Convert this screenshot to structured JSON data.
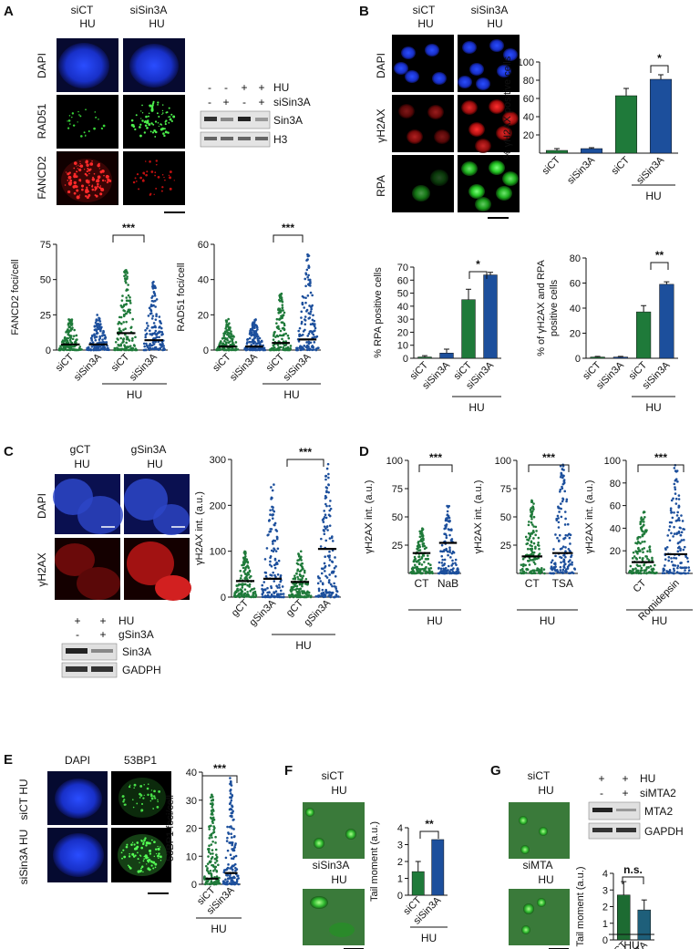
{
  "panels": {
    "A": {
      "letter": "A",
      "col1": "siCT",
      "col1b": "HU",
      "col2": "siSin3A",
      "col2b": "HU",
      "rows": [
        "DAPI",
        "RAD51",
        "FANCD2"
      ],
      "blot_rows": [
        "HU",
        "siSin3A"
      ],
      "blot_hu": [
        "-",
        "-",
        "+",
        "+"
      ],
      "blot_si": [
        "-",
        "+",
        "-",
        "+"
      ],
      "blot_bands": [
        "Sin3A",
        "H3"
      ]
    },
    "B": {
      "letter": "B",
      "col1": "siCT",
      "col1b": "HU",
      "col2": "siSin3A",
      "col2b": "HU",
      "rows": [
        "DAPI",
        "γH2AX",
        "RPA"
      ]
    },
    "C": {
      "letter": "C",
      "col1": "gCT",
      "col1b": "HU",
      "col2": "gSin3A",
      "col2b": "HU",
      "rows": [
        "DAPI",
        "γH2AX"
      ],
      "blot_rows": [
        "HU",
        "gSin3A"
      ],
      "blot_hu": [
        "+",
        "+"
      ],
      "blot_g": [
        "-",
        "+"
      ],
      "blot_bands": [
        "Sin3A",
        "GADPH"
      ]
    },
    "D": {
      "letter": "D"
    },
    "E": {
      "letter": "E",
      "cols": [
        "DAPI",
        "53BP1"
      ],
      "rows": [
        "siCT HU",
        "siSin3A HU"
      ]
    },
    "F": {
      "letter": "F",
      "img1a": "siCT",
      "img1b": "HU",
      "img2a": "siSin3A",
      "img2b": "HU"
    },
    "G": {
      "letter": "G",
      "img1a": "siCT",
      "img1b": "HU",
      "img2a": "siMTA",
      "img2b": "HU",
      "blot_rows": [
        "HU",
        "siMTA2"
      ],
      "blot_hu": [
        "+",
        "+"
      ],
      "blot_si": [
        "-",
        "+"
      ],
      "blot_bands": [
        "MTA2",
        "GAPDH"
      ]
    }
  },
  "colors": {
    "green": "#1f7a3a",
    "blue": "#1c4f9c",
    "teal": "#1e5f7a",
    "dark_green": "#1d6b32"
  },
  "chart_data": [
    {
      "id": "A1",
      "type": "scatter",
      "ylabel": "FANCD2 foci/cell",
      "ylim": [
        0,
        75
      ],
      "yticks": [
        0,
        25,
        50,
        75
      ],
      "categories": [
        "siCT",
        "siSin3A",
        "siCT",
        "siSin3A"
      ],
      "group_label": "HU",
      "significance": "***",
      "medians": [
        4,
        4,
        12,
        7
      ],
      "spread_max": [
        22,
        25,
        57,
        50
      ]
    },
    {
      "id": "A2",
      "type": "scatter",
      "ylabel": "RAD51 foci/cell",
      "ylim": [
        0,
        60
      ],
      "yticks": [
        0,
        20,
        40,
        60
      ],
      "categories": [
        "siCT",
        "siSin3A",
        "siCT",
        "siSin3A"
      ],
      "group_label": "HU",
      "significance": "***",
      "medians": [
        2,
        2,
        4,
        6
      ],
      "spread_max": [
        18,
        18,
        32,
        55
      ]
    },
    {
      "id": "B1",
      "type": "bar",
      "ylabel": "% γH2AX positive cells",
      "ylim": [
        0,
        100
      ],
      "yticks": [
        20,
        40,
        60,
        80,
        100
      ],
      "categories": [
        "siCT",
        "siSin3A",
        "siCT",
        "siSin3A"
      ],
      "group_label": "HU",
      "significance": "*",
      "values": [
        3,
        5,
        63,
        81
      ],
      "errors": [
        2,
        1,
        8,
        5
      ]
    },
    {
      "id": "B2",
      "type": "bar",
      "ylabel": "% RPA positive cells",
      "ylim": [
        0,
        70
      ],
      "yticks": [
        0,
        10,
        20,
        30,
        40,
        50,
        60,
        70
      ],
      "categories": [
        "siCT",
        "siSin3A",
        "siCT",
        "siSin3A"
      ],
      "group_label": "HU",
      "significance": "*",
      "values": [
        1,
        4,
        45,
        64
      ],
      "errors": [
        1,
        3,
        8,
        2
      ]
    },
    {
      "id": "B3",
      "type": "bar",
      "ylabel": "% of γH2AX and RPA positive cells",
      "ylim": [
        0,
        80
      ],
      "yticks": [
        0,
        20,
        40,
        60,
        80
      ],
      "categories": [
        "siCT",
        "siSin3A",
        "siCT",
        "siSin3A"
      ],
      "group_label": "HU",
      "significance": "**",
      "values": [
        1,
        1,
        37,
        59
      ],
      "errors": [
        0.5,
        0.5,
        5,
        2
      ]
    },
    {
      "id": "C1",
      "type": "scatter",
      "ylabel": "γH2AX int. (a.u.)",
      "ylim": [
        0,
        300
      ],
      "yticks": [
        0,
        100,
        200,
        300
      ],
      "categories": [
        "gCT",
        "gSin3A",
        "gCT",
        "gSin3A"
      ],
      "group_label": "HU",
      "significance": "***",
      "medians": [
        35,
        40,
        33,
        105
      ],
      "spread_max": [
        100,
        250,
        100,
        290
      ]
    },
    {
      "id": "D1",
      "type": "scatter",
      "ylabel": "γH2AX int. (a.u.)",
      "ylim": [
        0,
        100
      ],
      "yticks": [
        25,
        50,
        75,
        100
      ],
      "categories": [
        "CT",
        "NaB"
      ],
      "group_label": "HU",
      "significance": "***",
      "medians": [
        18,
        27
      ],
      "spread_max": [
        40,
        60
      ]
    },
    {
      "id": "D2",
      "type": "scatter",
      "ylabel": "γH2AX int. (a.u.)",
      "ylim": [
        0,
        100
      ],
      "yticks": [
        25,
        50,
        75,
        100
      ],
      "categories": [
        "CT",
        "TSA"
      ],
      "group_label": "HU",
      "significance": "***",
      "medians": [
        15,
        18
      ],
      "spread_max": [
        65,
        98
      ]
    },
    {
      "id": "D3",
      "type": "scatter",
      "ylabel": "γH2AX int. (a.u.)",
      "ylim": [
        0,
        100
      ],
      "yticks": [
        20,
        40,
        60,
        80,
        100
      ],
      "categories": [
        "CT",
        "Romidepsin"
      ],
      "group_label": "HU",
      "significance": "***",
      "medians": [
        10,
        17
      ],
      "spread_max": [
        55,
        98
      ]
    },
    {
      "id": "E1",
      "type": "scatter",
      "ylabel": "53BP1 foci/cell",
      "ylim": [
        0,
        40
      ],
      "yticks": [
        0,
        10,
        20,
        30,
        40
      ],
      "categories": [
        "siCT",
        "siSin3A"
      ],
      "group_label": "HU",
      "significance": "***",
      "medians": [
        2,
        4
      ],
      "spread_max": [
        33,
        38
      ]
    },
    {
      "id": "F1",
      "type": "bar",
      "ylabel": "Tail moment (a.u.)",
      "ylim": [
        0,
        4
      ],
      "yticks": [
        0,
        1,
        2,
        3,
        4
      ],
      "categories": [
        "siCT",
        "siSin3A"
      ],
      "group_label": "HU",
      "significance": "**",
      "values": [
        1.4,
        3.3
      ],
      "errors": [
        0.6,
        0
      ]
    },
    {
      "id": "G1",
      "type": "bar",
      "ylabel": "Tail moment (a.u.)",
      "ylim": [
        0,
        4
      ],
      "yticks": [
        0,
        1,
        2,
        3,
        4
      ],
      "categories": [
        "siCT",
        "siMTA"
      ],
      "group_label": "HU",
      "significance": "n.s.",
      "values": [
        2.7,
        1.8
      ],
      "errors": [
        0.8,
        0.6
      ]
    }
  ]
}
